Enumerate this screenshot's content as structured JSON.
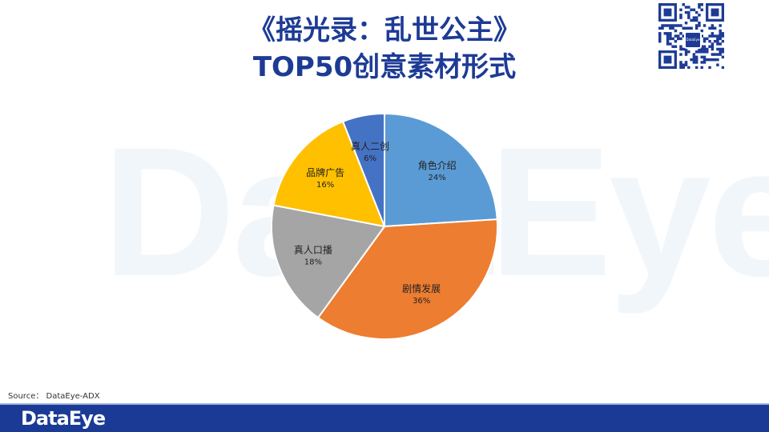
{
  "header": {
    "title_line1": "《摇光录：乱世公主》",
    "title_line2": "TOP50创意素材形式"
  },
  "watermark_text": "DataEye",
  "qr": {
    "logo_text": "DataEye"
  },
  "source_text": "Source： DataEye-ADX",
  "footer": {
    "logo_text": "DataEye",
    "bg_color": "#1a3a96"
  },
  "chart_data": {
    "type": "pie",
    "title": "",
    "slices": [
      {
        "label": "角色介绍",
        "value": 24,
        "value_label": "24%",
        "color": "#5b9bd5"
      },
      {
        "label": "剧情发展",
        "value": 36,
        "value_label": "36%",
        "color": "#ed7d31"
      },
      {
        "label": "真人口播",
        "value": 18,
        "value_label": "18%",
        "color": "#a5a5a5"
      },
      {
        "label": "品牌广告",
        "value": 16,
        "value_label": "16%",
        "color": "#ffc000"
      },
      {
        "label": "真人二创",
        "value": 6,
        "value_label": "6%",
        "color": "#4472c4"
      }
    ],
    "start": "12 o'clock",
    "direction": "clockwise"
  }
}
